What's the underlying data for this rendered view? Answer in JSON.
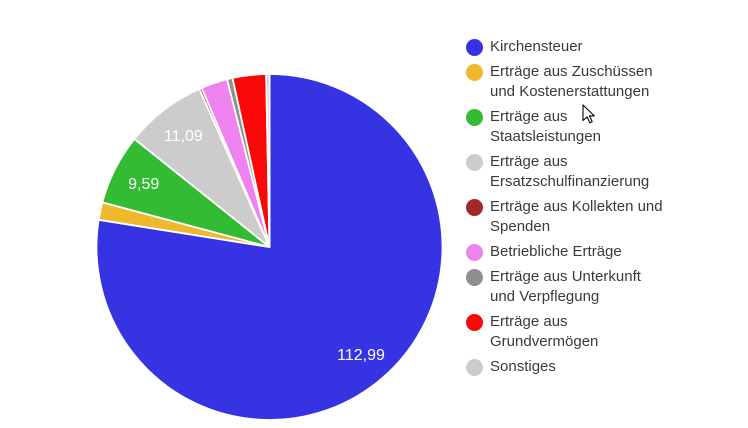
{
  "chart_data": {
    "type": "pie",
    "title": "",
    "legend_position": "right",
    "background_color": "#ffffff",
    "slice_label_color": "#ffffff",
    "legend_text_color": "#3a3a3a",
    "series": [
      {
        "name": "Kirchensteuer",
        "legend_lines": [
          "Kirchensteuer"
        ],
        "value": 112.99,
        "label": "112,99",
        "value_estimated": false,
        "color": "#3633e3"
      },
      {
        "name": "Erträge aus Zuschüssen und Kostenerstattungen",
        "legend_lines": [
          "Erträge aus Zuschüssen",
          "und Kostenerstattungen"
        ],
        "value": 2.4,
        "label": "",
        "value_estimated": true,
        "color": "#efb92e"
      },
      {
        "name": "Erträge aus Staatsleistungen",
        "legend_lines": [
          "Erträge aus",
          "Staatsleistungen"
        ],
        "value": 9.59,
        "label": "9,59",
        "value_estimated": false,
        "color": "#33bb33"
      },
      {
        "name": "Erträge aus Ersatzschulfinanzierung",
        "legend_lines": [
          "Erträge aus",
          "Ersatzschulfinanzierung"
        ],
        "value": 11.09,
        "label": "11,09",
        "value_estimated": false,
        "color": "#cccccc"
      },
      {
        "name": "Erträge aus Kollekten und Spenden",
        "legend_lines": [
          "Erträge aus Kollekten und",
          "Spenden"
        ],
        "value": 0.35,
        "label": "",
        "value_estimated": true,
        "color": "#a32929"
      },
      {
        "name": "Betriebliche Erträge",
        "legend_lines": [
          "Betriebliche Erträge"
        ],
        "value": 3.6,
        "label": "",
        "value_estimated": true,
        "color": "#ee82ee"
      },
      {
        "name": "Erträge aus Unterkunft und Verpflegung",
        "legend_lines": [
          "Erträge aus Unterkunft",
          "und Verpflegung"
        ],
        "value": 0.75,
        "label": "",
        "value_estimated": true,
        "color": "#8f8f8f"
      },
      {
        "name": "Erträge aus Grundvermögen",
        "legend_lines": [
          "Erträge aus",
          "Grundvermögen"
        ],
        "value": 4.55,
        "label": "",
        "value_estimated": true,
        "color": "#fa0707"
      },
      {
        "name": "Sonstiges",
        "legend_lines": [
          "Sonstiges"
        ],
        "value": 0.45,
        "label": "",
        "value_estimated": true,
        "color": "#cccccc"
      }
    ]
  }
}
